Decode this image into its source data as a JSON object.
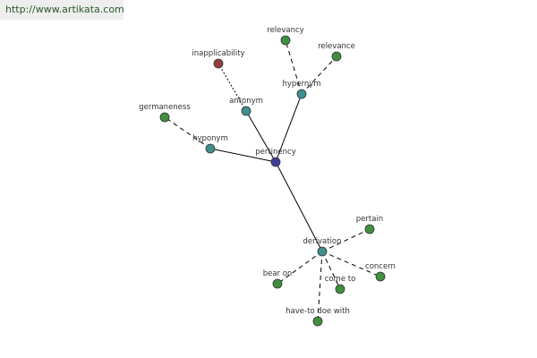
{
  "watermark": "http://www.artikata.com",
  "nodes": [
    {
      "label": "pertinency"
    },
    {
      "label": "hypernym"
    },
    {
      "label": "relevancy"
    },
    {
      "label": "relevance"
    },
    {
      "label": "antonym"
    },
    {
      "label": "inapplicability"
    },
    {
      "label": "hyponym"
    },
    {
      "label": "germaneness"
    },
    {
      "label": "derivation"
    },
    {
      "label": "pertain"
    },
    {
      "label": "concern"
    },
    {
      "label": "come to"
    },
    {
      "label": "have-to doe with"
    },
    {
      "label": "bear on"
    }
  ]
}
